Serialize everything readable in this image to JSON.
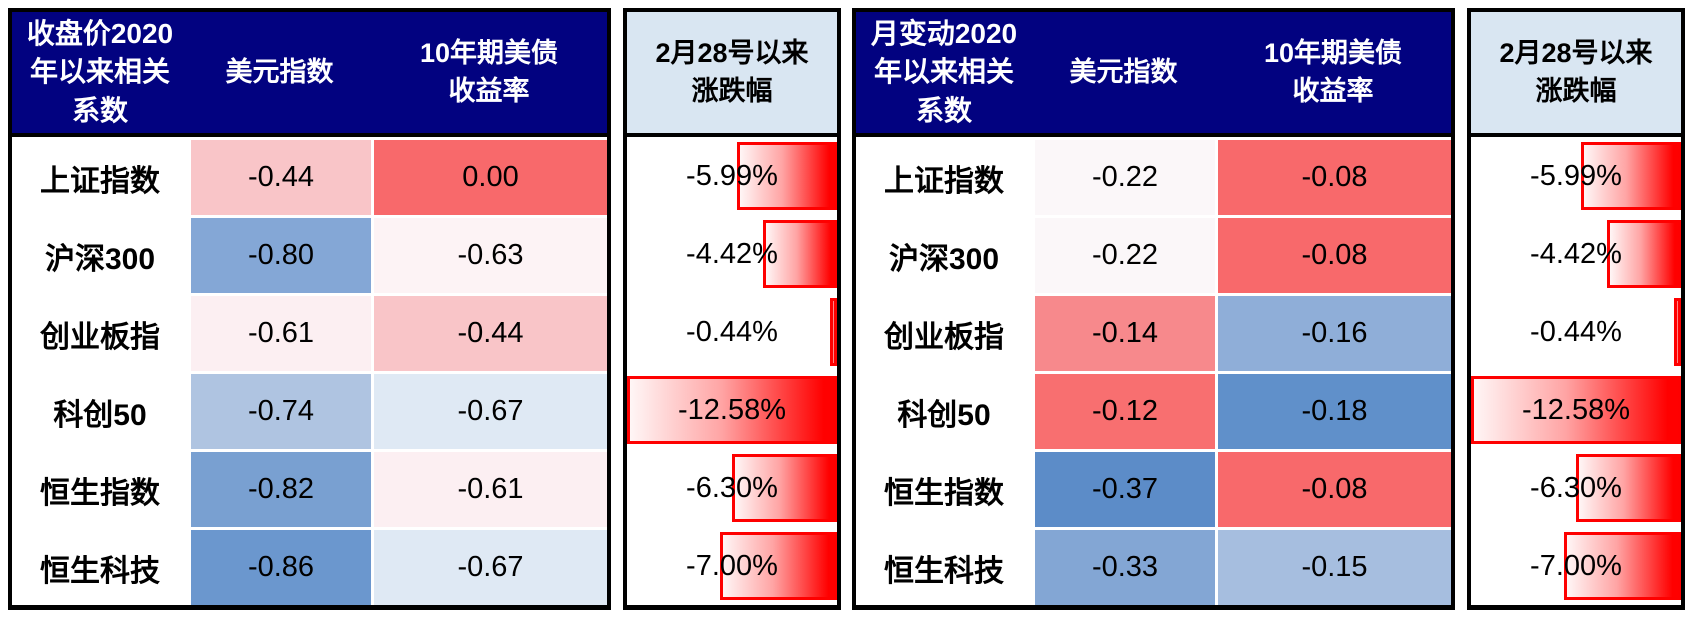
{
  "tables": [
    {
      "corner_header": "收盘价2020\n年以来相关\n系数",
      "col_headers": [
        "美元指数",
        "10年期美债\n收益率"
      ],
      "bar_header": "2月28号以来\n涨跌幅",
      "rows": [
        {
          "label": "上证指数",
          "cols": [
            {
              "v": "-0.44",
              "bg": "#F9C5C8"
            },
            {
              "v": "0.00",
              "bg": "#F8696B"
            }
          ],
          "change": "-5.99%",
          "bar_pct": 47.6
        },
        {
          "label": "沪深300",
          "cols": [
            {
              "v": "-0.80",
              "bg": "#84A7D6"
            },
            {
              "v": "-0.63",
              "bg": "#FDF3F5"
            }
          ],
          "change": "-4.42%",
          "bar_pct": 35.1
        },
        {
          "label": "创业板指",
          "cols": [
            {
              "v": "-0.61",
              "bg": "#FCEFF2"
            },
            {
              "v": "-0.44",
              "bg": "#F9C5C8"
            }
          ],
          "change": "-0.44%",
          "bar_pct": 3.5
        },
        {
          "label": "科创50",
          "cols": [
            {
              "v": "-0.74",
              "bg": "#AFC4E1"
            },
            {
              "v": "-0.67",
              "bg": "#DFE9F4"
            }
          ],
          "change": "-12.58%",
          "bar_pct": 100
        },
        {
          "label": "恒生指数",
          "cols": [
            {
              "v": "-0.82",
              "bg": "#79A0D1"
            },
            {
              "v": "-0.61",
              "bg": "#FCEFF2"
            }
          ],
          "change": "-6.30%",
          "bar_pct": 50.1
        },
        {
          "label": "恒生科技",
          "cols": [
            {
              "v": "-0.86",
              "bg": "#6B97CE"
            },
            {
              "v": "-0.67",
              "bg": "#DFE9F4"
            }
          ],
          "change": "-7.00%",
          "bar_pct": 55.6
        }
      ]
    },
    {
      "corner_header": "月变动2020\n年以来相关\n系数",
      "col_headers": [
        "美元指数",
        "10年期美债\n收益率"
      ],
      "bar_header": "2月28号以来\n涨跌幅",
      "rows": [
        {
          "label": "上证指数",
          "cols": [
            {
              "v": "-0.22",
              "bg": "#FBF7F9"
            },
            {
              "v": "-0.08",
              "bg": "#F8696B"
            }
          ],
          "change": "-5.99%",
          "bar_pct": 47.6
        },
        {
          "label": "沪深300",
          "cols": [
            {
              "v": "-0.22",
              "bg": "#FBF7F9"
            },
            {
              "v": "-0.08",
              "bg": "#F8696B"
            }
          ],
          "change": "-4.42%",
          "bar_pct": 35.1
        },
        {
          "label": "创业板指",
          "cols": [
            {
              "v": "-0.14",
              "bg": "#F7898C"
            },
            {
              "v": "-0.16",
              "bg": "#8FAED8"
            }
          ],
          "change": "-0.44%",
          "bar_pct": 3.5
        },
        {
          "label": "科创50",
          "cols": [
            {
              "v": "-0.12",
              "bg": "#F86F70"
            },
            {
              "v": "-0.18",
              "bg": "#6090CA"
            }
          ],
          "change": "-12.58%",
          "bar_pct": 100
        },
        {
          "label": "恒生指数",
          "cols": [
            {
              "v": "-0.37",
              "bg": "#5C8CC8"
            },
            {
              "v": "-0.08",
              "bg": "#F8696B"
            }
          ],
          "change": "-6.30%",
          "bar_pct": 50.1
        },
        {
          "label": "恒生科技",
          "cols": [
            {
              "v": "-0.33",
              "bg": "#83A6D4"
            },
            {
              "v": "-0.15",
              "bg": "#A6BEDF"
            }
          ],
          "change": "-7.00%",
          "bar_pct": 55.6
        }
      ]
    }
  ],
  "colors": {
    "header_bg": "#020280",
    "header_text": "#FFFFFF",
    "bar_header_bg": "#D9E6F2",
    "bar_border": "#FE0000",
    "bar_fill_end": "#FF0000",
    "scale_red": "#F8696B",
    "scale_white": "#FCFCFF",
    "scale_blue": "#5A8AC6",
    "table_border": "#000000"
  },
  "chart_data": [
    {
      "type": "heatmap",
      "title": "收盘价2020年以来相关系数",
      "rows": [
        "上证指数",
        "沪深300",
        "创业板指",
        "科创50",
        "恒生指数",
        "恒生科技"
      ],
      "columns": [
        "美元指数",
        "10年期美债收益率",
        "2月28号以来涨跌幅(%)"
      ],
      "values": [
        [
          -0.44,
          0.0,
          -5.99
        ],
        [
          -0.8,
          -0.63,
          -4.42
        ],
        [
          -0.61,
          -0.44,
          -0.44
        ],
        [
          -0.74,
          -0.67,
          -12.58
        ],
        [
          -0.82,
          -0.61,
          -6.3
        ],
        [
          -0.86,
          -0.67,
          -7.0
        ]
      ],
      "bar_axis_max_abs": 12.58,
      "legend_position": "none",
      "grid": false
    },
    {
      "type": "heatmap",
      "title": "月变动2020年以来相关系数",
      "rows": [
        "上证指数",
        "沪深300",
        "创业板指",
        "科创50",
        "恒生指数",
        "恒生科技"
      ],
      "columns": [
        "美元指数",
        "10年期美债收益率",
        "2月28号以来涨跌幅(%)"
      ],
      "values": [
        [
          -0.22,
          -0.08,
          -5.99
        ],
        [
          -0.22,
          -0.08,
          -4.42
        ],
        [
          -0.14,
          -0.16,
          -0.44
        ],
        [
          -0.12,
          -0.18,
          -12.58
        ],
        [
          -0.37,
          -0.08,
          -6.3
        ],
        [
          -0.33,
          -0.15,
          -7.0
        ]
      ],
      "bar_axis_max_abs": 12.58,
      "legend_position": "none",
      "grid": false
    }
  ]
}
